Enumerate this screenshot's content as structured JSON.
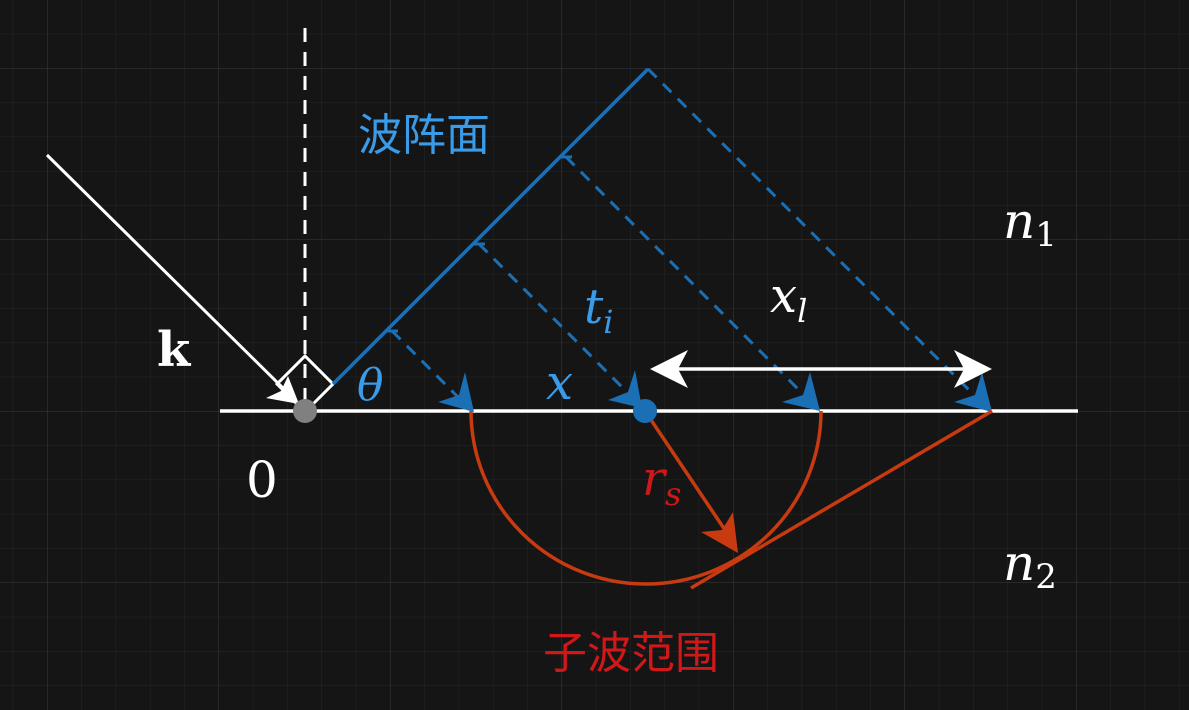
{
  "labels": {
    "wavefront": "波阵面",
    "wavelet_range": "子波范围",
    "k": "k",
    "origin": "0",
    "theta": "θ",
    "t_base": "t",
    "t_sub": "i",
    "x": "x",
    "x_l_base": "x",
    "x_l_sub": "l",
    "r_s_base": "r",
    "r_s_sub": "s",
    "n1_base": "n",
    "n1_sub": "1",
    "n2_base": "n",
    "n2_sub": "2"
  },
  "colors": {
    "background": "#151515",
    "grid_minor": "#262626",
    "grid_major": "#3a3a3a",
    "white": "#ffffff",
    "blue": "#1a6fb5",
    "blue_text": "#3a9be8",
    "red": "#c83a10",
    "red_text": "#d01818",
    "gray": "#808080"
  }
}
